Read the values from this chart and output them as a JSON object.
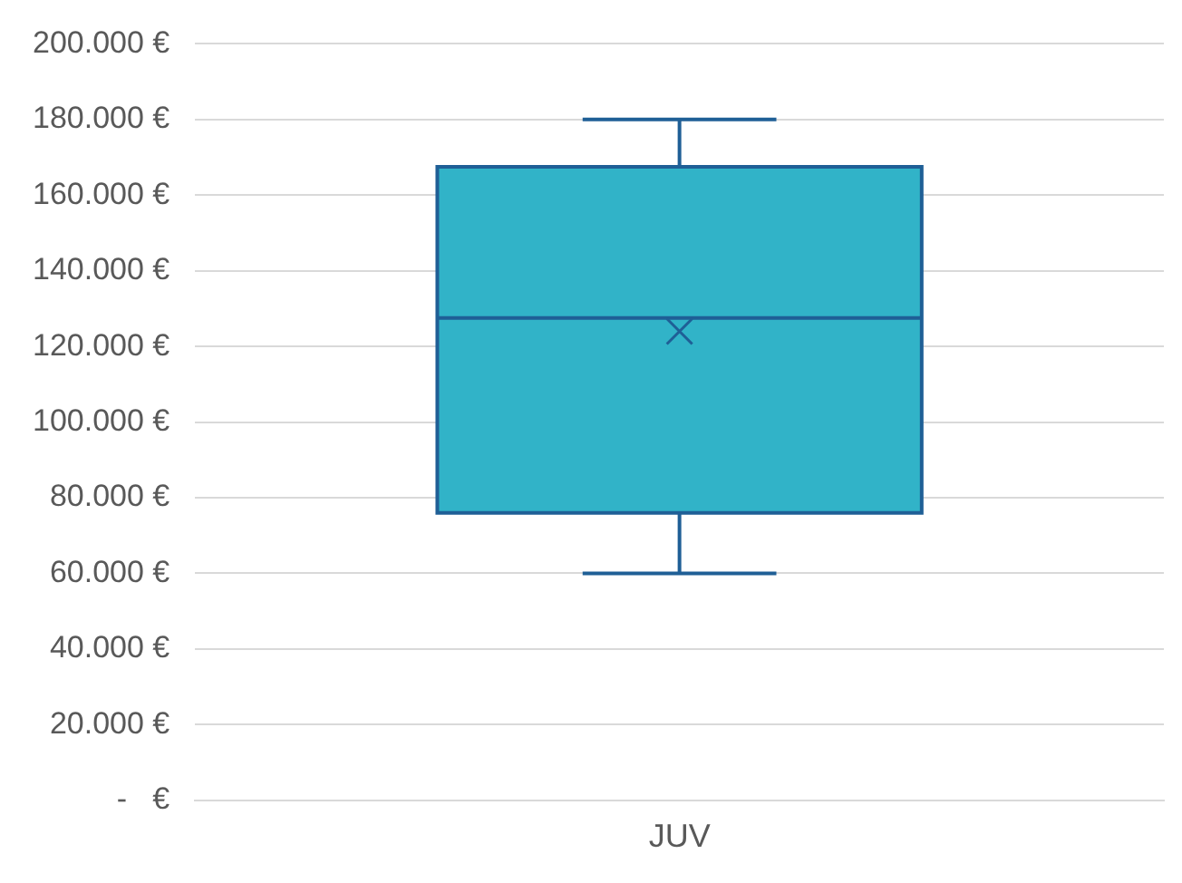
{
  "chart_data": {
    "type": "box",
    "categories": [
      "JUV"
    ],
    "series": [
      {
        "color": "#31b3c8",
        "boxes": [
          {
            "low": 60000,
            "q1": 76000,
            "median": 127500,
            "q3": 167500,
            "high": 180000,
            "mean": 124000
          }
        ]
      }
    ],
    "ylim": [
      0,
      200000
    ],
    "yticks": [
      {
        "value": 0,
        "label": "-   €"
      },
      {
        "value": 20000,
        "label": "20.000 €"
      },
      {
        "value": 40000,
        "label": "40.000 €"
      },
      {
        "value": 60000,
        "label": "60.000 €"
      },
      {
        "value": 80000,
        "label": "80.000 €"
      },
      {
        "value": 100000,
        "label": "100.000 €"
      },
      {
        "value": 120000,
        "label": "120.000 €"
      },
      {
        "value": 140000,
        "label": "140.000 €"
      },
      {
        "value": 160000,
        "label": "160.000 €"
      },
      {
        "value": 180000,
        "label": "180.000 €"
      },
      {
        "value": 200000,
        "label": "200.000 €"
      }
    ],
    "grid": "y",
    "marker": "cross"
  }
}
